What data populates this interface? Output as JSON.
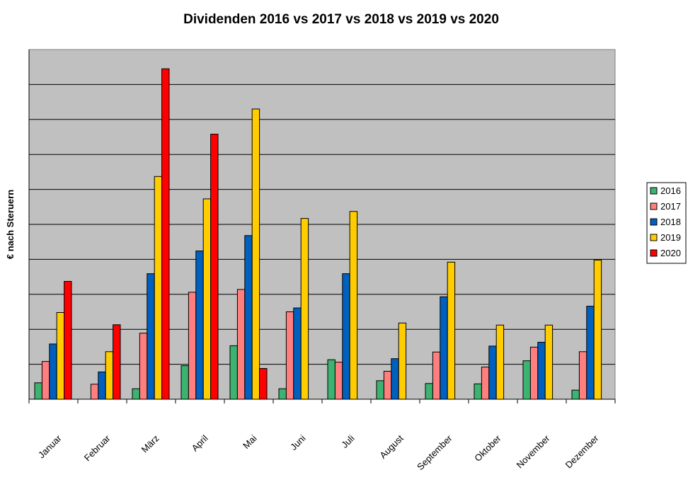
{
  "chart_data": {
    "type": "bar",
    "title": "Dividenden 2016 vs 2017 vs 2018 vs 2019 vs 2020",
    "xlabel": "",
    "ylabel": "€ nach Steruern",
    "categories": [
      "Januar",
      "Februar",
      "März",
      "April",
      "Mai",
      "Juni",
      "Juli",
      "August",
      "September",
      "Oktober",
      "November",
      "Dezember"
    ],
    "ylim": [
      0,
      10
    ],
    "grid": true,
    "legend_position": "right",
    "series": [
      {
        "name": "2016",
        "color": "#3CB371",
        "values": [
          0.47,
          0,
          0.3,
          0.96,
          1.53,
          0.3,
          1.13,
          0.53,
          0.45,
          0.44,
          1.1,
          0.26
        ]
      },
      {
        "name": "2017",
        "color": "#FF7F7F",
        "values": [
          1.08,
          0.43,
          1.89,
          3.06,
          3.14,
          2.5,
          1.06,
          0.8,
          1.35,
          0.92,
          1.49,
          1.36
        ]
      },
      {
        "name": "2018",
        "color": "#0060C0",
        "values": [
          1.58,
          0.78,
          3.59,
          4.24,
          4.68,
          2.61,
          3.59,
          1.16,
          2.93,
          1.52,
          1.63,
          2.66
        ]
      },
      {
        "name": "2019",
        "color": "#FFCC00",
        "values": [
          2.48,
          1.36,
          6.37,
          5.73,
          8.3,
          5.17,
          5.37,
          2.18,
          3.92,
          2.12,
          2.12,
          3.98
        ]
      },
      {
        "name": "2020",
        "color": "#FF0000",
        "values": [
          3.37,
          2.13,
          9.45,
          7.58,
          0.88,
          null,
          null,
          null,
          null,
          null,
          null,
          null
        ]
      }
    ]
  }
}
